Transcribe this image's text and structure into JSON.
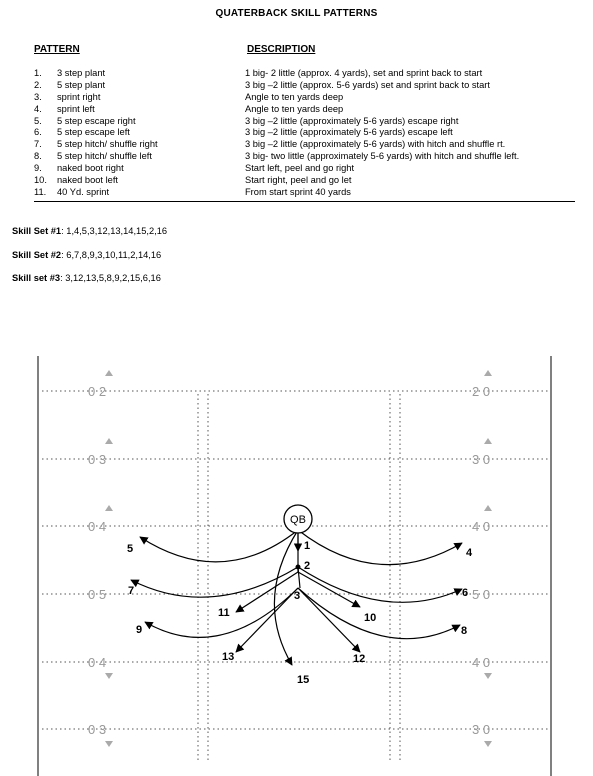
{
  "title": "QUATERBACK SKILL PATTERNS",
  "headers": {
    "pattern": "PATTERN",
    "description": "DESCRIPTION"
  },
  "patterns": [
    {
      "num": "1.",
      "name": "3 step plant",
      "desc": "1 big- 2 little (approx. 4 yards), set and sprint back to start"
    },
    {
      "num": "2.",
      "name": "5 step plant",
      "desc": "3 big –2 little (approx. 5-6 yards) set and sprint back to start"
    },
    {
      "num": "3.",
      "name": "sprint right",
      "desc": "Angle to ten yards deep"
    },
    {
      "num": "4.",
      "name": "sprint left",
      "desc": "Angle to ten yards deep"
    },
    {
      "num": "5.",
      "name": "5 step escape right",
      "desc": "3 big –2 little (approximately 5-6 yards) escape right"
    },
    {
      "num": "6.",
      "name": "5 step escape left",
      "desc": "3 big –2 little (approximately 5-6 yards) escape left"
    },
    {
      "num": "7.",
      "name": "5 step hitch/ shuffle right",
      "desc": "3 big –2 little (approximately 5-6 yards) with hitch and shuffle rt."
    },
    {
      "num": "8.",
      "name": "5 step hitch/ shuffle left",
      "desc": "3 big- two little (approximately 5-6 yards) with hitch and shuffle left."
    },
    {
      "num": "9.",
      "name": "naked boot right",
      "desc": "Start left, peel and go right"
    },
    {
      "num": "10.",
      "name": "naked boot left",
      "desc": "Start right, peel and go let"
    },
    {
      "num": "11.",
      "name": "40 Yd. sprint",
      "desc": "From start sprint 40 yards"
    }
  ],
  "skill_sets": [
    {
      "label": "Skill Set #1",
      "values": ": 1,4,5,3,12,13,14,15,2,16"
    },
    {
      "label": "Skill Set #2",
      "values": ":  6,7,8,9,3,10,11,2,14,16"
    },
    {
      "label": "Skill set #3",
      "values": ": 3,12,13,5,8,9,2,15,6,16"
    }
  ],
  "diagram": {
    "qb_label": "QB",
    "route_labels": [
      "1",
      "2",
      "3",
      "4",
      "5",
      "6",
      "7",
      "8",
      "9",
      "10",
      "11",
      "12",
      "13",
      "15"
    ],
    "yard_left": [
      "0 2",
      "0 3",
      "0 4",
      "0 5",
      "0 4",
      "0 3"
    ],
    "yard_right": [
      "2 0",
      "3 0",
      "4 0",
      "5 0",
      "4 0",
      "3 0"
    ]
  }
}
